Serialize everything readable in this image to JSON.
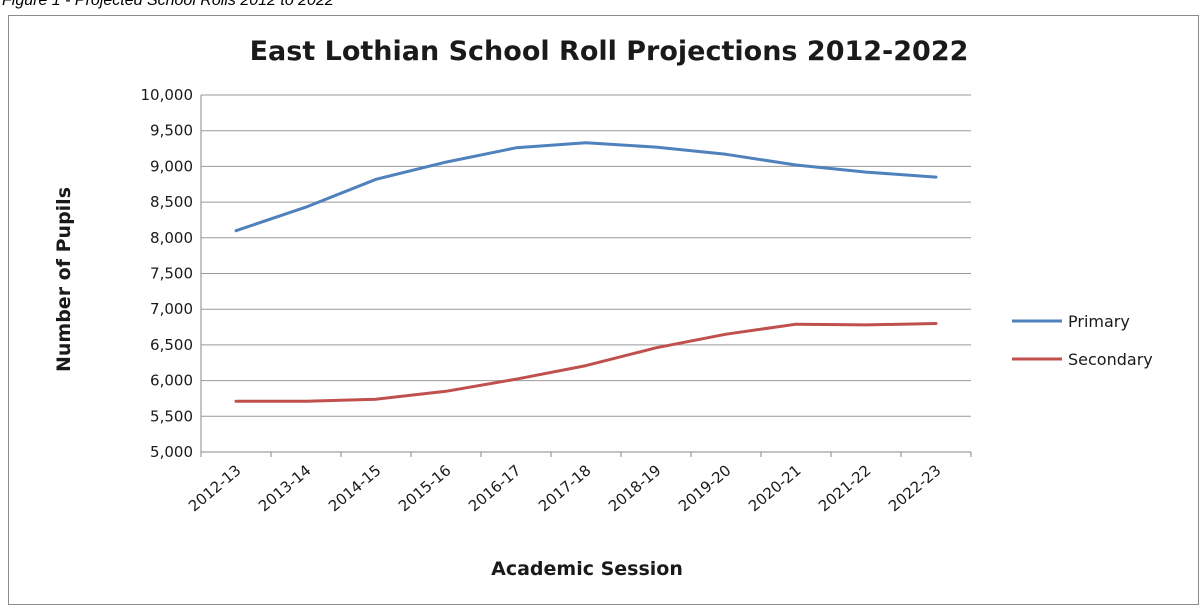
{
  "figure_caption": "Figure 1 - Projected School Rolls 2012 to 2022",
  "chart_data": {
    "type": "line",
    "title": "East Lothian School Roll Projections 2012-2022",
    "xlabel": "Academic Session",
    "ylabel": "Number of Pupils",
    "categories": [
      "2012-13",
      "2013-14",
      "2014-15",
      "2015-16",
      "2016-17",
      "2017-18",
      "2018-19",
      "2019-20",
      "2020-21",
      "2021-22",
      "2022-23"
    ],
    "ylim": [
      5000,
      10000
    ],
    "yticks": [
      5000,
      5500,
      6000,
      6500,
      7000,
      7500,
      8000,
      8500,
      9000,
      9500,
      10000
    ],
    "ytick_labels": [
      "5,000",
      "5,500",
      "6,000",
      "6,500",
      "7,000",
      "7,500",
      "8,000",
      "8,500",
      "9,000",
      "9,500",
      "10,000"
    ],
    "grid": true,
    "legend_position": "right",
    "series": [
      {
        "name": "Primary",
        "color": "#4f81bd",
        "values": [
          8100,
          8430,
          8820,
          9060,
          9260,
          9330,
          9270,
          9170,
          9020,
          8920,
          8850
        ]
      },
      {
        "name": "Secondary",
        "color": "#c0504d",
        "values": [
          5710,
          5710,
          5740,
          5850,
          6020,
          6210,
          6460,
          6650,
          6790,
          6780,
          6800
        ]
      }
    ]
  }
}
